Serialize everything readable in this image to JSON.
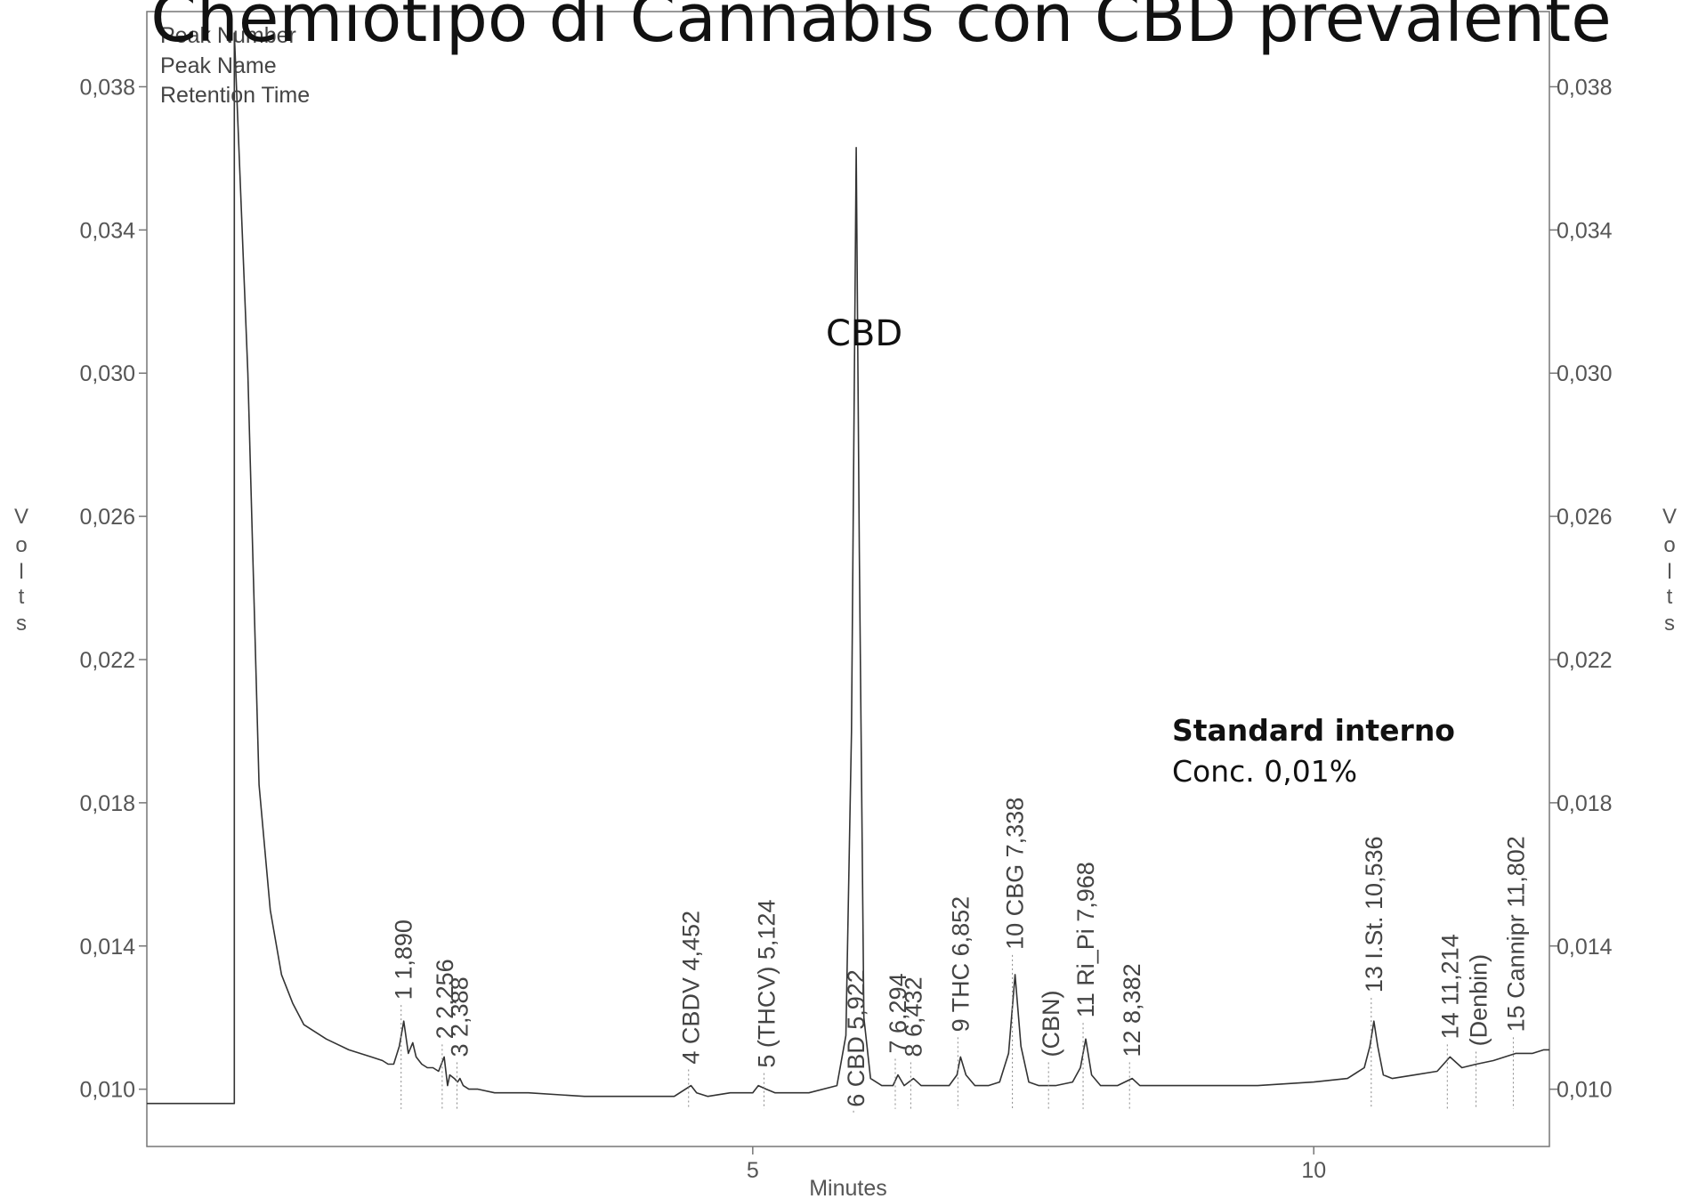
{
  "chart_data": {
    "type": "line",
    "title": "Chemiotipo di Cannabis con CBD prevalente",
    "xlabel": "Minutes",
    "ylabel": "Volts",
    "ylabel_letters": [
      "V",
      "o",
      "l",
      "t",
      "s"
    ],
    "xlim": [
      -0.4,
      12.1
    ],
    "ylim": [
      0.0084,
      0.0401
    ],
    "x_ticks": [
      {
        "value": 5,
        "label": "5"
      },
      {
        "value": 10,
        "label": "10"
      }
    ],
    "y_ticks": [
      {
        "value": 0.01,
        "label": "0,010"
      },
      {
        "value": 0.014,
        "label": "0,014"
      },
      {
        "value": 0.018,
        "label": "0,018"
      },
      {
        "value": 0.022,
        "label": "0,022"
      },
      {
        "value": 0.026,
        "label": "0,026"
      },
      {
        "value": 0.03,
        "label": "0,030"
      },
      {
        "value": 0.034,
        "label": "0,034"
      },
      {
        "value": 0.038,
        "label": "0,038"
      }
    ],
    "legend": [
      "Peak Number",
      "Peak Name",
      "Retention Time"
    ],
    "grid": false,
    "series": [
      {
        "x": [
          -0.4,
          0.0,
          0.38,
          0.38,
          0.5,
          0.6,
          0.7,
          0.8,
          0.9,
          1.0,
          1.2,
          1.4,
          1.6,
          1.7,
          1.75,
          1.8,
          1.85,
          1.89,
          1.93,
          1.97,
          2.0,
          2.05,
          2.1,
          2.15,
          2.2,
          2.25,
          2.28,
          2.3,
          2.34,
          2.37,
          2.39,
          2.42,
          2.47,
          2.55,
          2.7,
          3.0,
          3.5,
          4.0,
          4.3,
          4.45,
          4.5,
          4.6,
          4.8,
          5.0,
          5.05,
          5.12,
          5.2,
          5.5,
          5.75,
          5.83,
          5.88,
          5.922,
          5.95,
          5.99,
          6.05,
          6.15,
          6.25,
          6.294,
          6.35,
          6.432,
          6.5,
          6.6,
          6.75,
          6.82,
          6.852,
          6.9,
          6.98,
          7.1,
          7.2,
          7.28,
          7.338,
          7.39,
          7.46,
          7.55,
          7.7,
          7.85,
          7.92,
          7.968,
          8.02,
          8.1,
          8.25,
          8.382,
          8.45,
          8.6,
          9.0,
          9.5,
          10.0,
          10.3,
          10.45,
          10.5,
          10.536,
          10.57,
          10.62,
          10.7,
          10.9,
          11.1,
          11.214,
          11.32,
          11.45,
          11.6,
          11.802,
          11.95,
          12.05,
          12.1
        ],
        "y": [
          0.0096,
          0.0096,
          0.0096,
          0.0395,
          0.03,
          0.0185,
          0.015,
          0.0132,
          0.0124,
          0.0118,
          0.0114,
          0.0111,
          0.0109,
          0.0108,
          0.0107,
          0.0107,
          0.0112,
          0.0119,
          0.011,
          0.0113,
          0.0109,
          0.0107,
          0.0106,
          0.0106,
          0.0105,
          0.0109,
          0.0101,
          0.0104,
          0.0103,
          0.0102,
          0.0103,
          0.0101,
          0.01,
          0.01,
          0.0099,
          0.0099,
          0.0098,
          0.0098,
          0.0098,
          0.0101,
          0.0099,
          0.0098,
          0.0099,
          0.0099,
          0.0101,
          0.01,
          0.0099,
          0.0099,
          0.0101,
          0.0115,
          0.02,
          0.0363,
          0.025,
          0.012,
          0.0103,
          0.0101,
          0.0101,
          0.0104,
          0.0101,
          0.0103,
          0.0101,
          0.0101,
          0.0101,
          0.0104,
          0.0109,
          0.0104,
          0.0101,
          0.0101,
          0.0102,
          0.011,
          0.0132,
          0.0112,
          0.0102,
          0.0101,
          0.0101,
          0.0102,
          0.0106,
          0.0114,
          0.0104,
          0.0101,
          0.0101,
          0.0103,
          0.0101,
          0.0101,
          0.0101,
          0.0101,
          0.0102,
          0.0103,
          0.0106,
          0.0112,
          0.0119,
          0.0112,
          0.0104,
          0.0103,
          0.0104,
          0.0105,
          0.0109,
          0.0106,
          0.0107,
          0.0108,
          0.011,
          0.011,
          0.0111,
          0.0111
        ]
      }
    ],
    "peak_labels": [
      {
        "x": 1.89,
        "y": 0.0122,
        "text": "1   1,890"
      },
      {
        "x": 2.256,
        "y": 0.0111,
        "text": "2   2,256"
      },
      {
        "x": 2.388,
        "y": 0.0106,
        "text": "3   2,388"
      },
      {
        "x": 4.452,
        "y": 0.0104,
        "text": "4  CBDV  4,452"
      },
      {
        "x": 5.124,
        "y": 0.0103,
        "text": "5  (THCV)  5,124"
      },
      {
        "x": 5.922,
        "y": 0.0092,
        "text": "6  CBD  5,922"
      },
      {
        "x": 6.294,
        "y": 0.0107,
        "text": "7   6,294"
      },
      {
        "x": 6.432,
        "y": 0.0106,
        "text": "8   6,432"
      },
      {
        "x": 6.852,
        "y": 0.0113,
        "text": "9  THC  6,852"
      },
      {
        "x": 7.338,
        "y": 0.0136,
        "text": "10  CBG  7,338"
      },
      {
        "x": 7.66,
        "y": 0.0106,
        "text": "(CBN)"
      },
      {
        "x": 7.968,
        "y": 0.0117,
        "text": "11  Ri_Pi  7,968"
      },
      {
        "x": 8.382,
        "y": 0.0106,
        "text": "12   8,382"
      },
      {
        "x": 10.536,
        "y": 0.0124,
        "text": "13  I.St.  10,536"
      },
      {
        "x": 11.214,
        "y": 0.0111,
        "text": "14   11,214"
      },
      {
        "x": 11.47,
        "y": 0.0109,
        "text": "(Denbin)"
      },
      {
        "x": 11.802,
        "y": 0.0113,
        "text": "15  Cannipr  11,802"
      }
    ],
    "annotations": {
      "cbd": "CBD",
      "standard_title": "Standard interno",
      "standard_conc": "Conc. 0,01%"
    }
  }
}
